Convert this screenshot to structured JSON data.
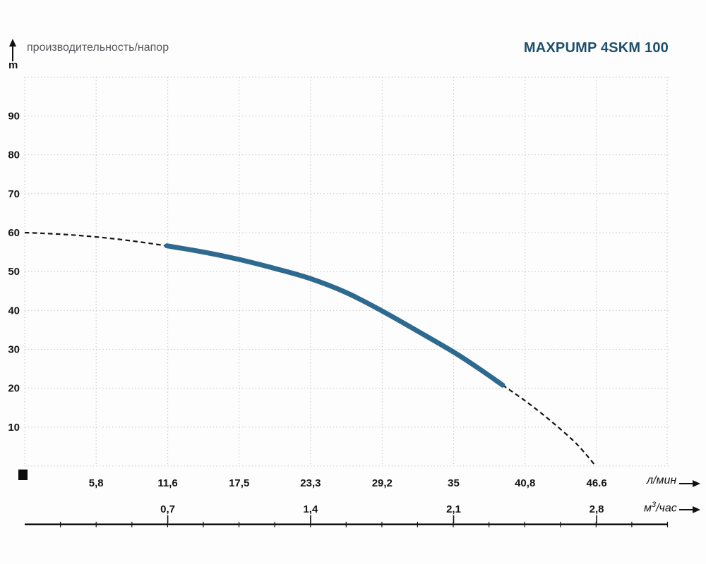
{
  "header": {
    "axis_title": "производительность/напор",
    "y_unit": "m",
    "product_title": "MAXPUMP 4SKM 100"
  },
  "units": {
    "flow_lpm_label": "л/мин",
    "flow_m3h_base": "м",
    "flow_m3h_sup": "3",
    "flow_m3h_rest": "/час"
  },
  "colors": {
    "curve_solid": "#2e6a8f",
    "curve_dashed": "#141414",
    "grid": "#c7c7c7",
    "tick_text": "#141414",
    "axis_line": "#111111",
    "product_blue": "#1d4f6b",
    "title_gray": "#54575b"
  },
  "chart_data": {
    "type": "line",
    "title": "производительность/напор",
    "series_name": "MAXPUMP 4SKM 100",
    "ylabel": "m",
    "xlabel_primary": "л/мин",
    "xlabel_secondary": "м³/час",
    "ylim": [
      0,
      100
    ],
    "xlim_lpm": [
      0,
      52.5
    ],
    "grid": true,
    "y_ticks": [
      10,
      20,
      30,
      40,
      50,
      60,
      70,
      80,
      90
    ],
    "x_ticks_lpm_labels": [
      "5,8",
      "11,6",
      "17,5",
      "23,3",
      "29,2",
      "35",
      "40,8",
      "46.6"
    ],
    "x_ticks_lpm_values": [
      5.83,
      11.67,
      17.5,
      23.33,
      29.17,
      35,
      40.83,
      46.67
    ],
    "x_ticks_m3h_labels": [
      "0,7",
      "1,4",
      "2,1",
      "2,8"
    ],
    "x_ticks_m3h_values": [
      0.7,
      1.4,
      2.1,
      2.8
    ],
    "x_ticks_m3h_lpm_positions": [
      11.67,
      23.33,
      35,
      46.67
    ],
    "curve_points_lpm_head": [
      [
        0,
        60
      ],
      [
        2.9,
        59.6
      ],
      [
        5.8,
        58.9
      ],
      [
        8.7,
        57.9
      ],
      [
        11.6,
        56.6
      ],
      [
        14.6,
        55.0
      ],
      [
        17.5,
        53.1
      ],
      [
        20.4,
        50.8
      ],
      [
        23.3,
        48.2
      ],
      [
        26.3,
        44.5
      ],
      [
        29.2,
        39.8
      ],
      [
        32,
        34.8
      ],
      [
        35,
        29.3
      ],
      [
        37,
        25.2
      ],
      [
        39,
        20.8
      ],
      [
        41,
        16.4
      ],
      [
        43,
        11.4
      ],
      [
        45,
        5.8
      ],
      [
        46.6,
        0
      ]
    ],
    "solid_segment_lpm": [
      11.6,
      39
    ],
    "dashed_segments_lpm": [
      [
        0,
        11.6
      ],
      [
        39,
        46.6
      ]
    ]
  }
}
